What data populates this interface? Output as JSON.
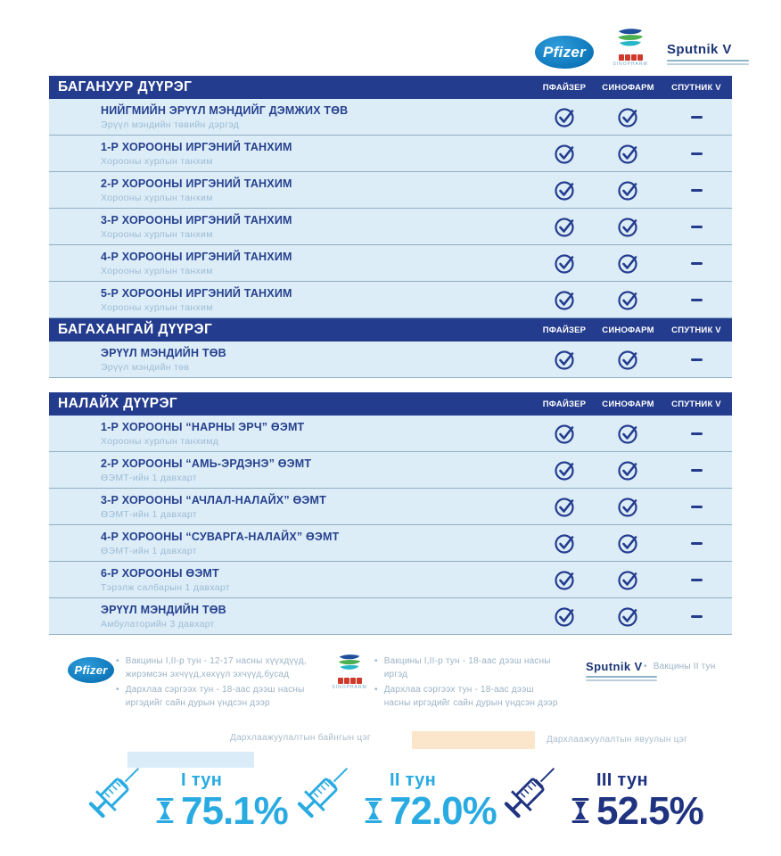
{
  "header": {
    "logos": {
      "pfizer": "Pfizer",
      "sinopharm_cn": "国药集团",
      "sinopharm_en": "SINOPHARM",
      "sputnik": "Sputnik V"
    }
  },
  "columns": [
    "ПФАЙЗЕР",
    "СИНОФАРМ",
    "СПУТНИК V"
  ],
  "sections": [
    {
      "title": "БАГАНУУР ДҮҮРЭГ",
      "rows": [
        {
          "name": "НИЙГМИЙН ЭРҮҮЛ МЭНДИЙГ ДЭМЖИХ ТӨВ",
          "location": "Эрүүл мэндийн төвийн дэргэд",
          "availability": {
            "pfizer": true,
            "sinopharm": true,
            "sputnik_v": false
          }
        },
        {
          "name": "1-Р ХОРООНЫ ИРГЭНИЙ ТАНХИМ",
          "location": "Хорооны хурлын танхим",
          "availability": {
            "pfizer": true,
            "sinopharm": true,
            "sputnik_v": false
          }
        },
        {
          "name": "2-Р ХОРООНЫ ИРГЭНИЙ ТАНХИМ",
          "location": "Хорооны хурлын танхим",
          "availability": {
            "pfizer": true,
            "sinopharm": true,
            "sputnik_v": false
          }
        },
        {
          "name": "3-Р ХОРООНЫ ИРГЭНИЙ ТАНХИМ",
          "location": "Хорооны хурлын танхим",
          "availability": {
            "pfizer": true,
            "sinopharm": true,
            "sputnik_v": false
          }
        },
        {
          "name": "4-Р ХОРООНЫ ИРГЭНИЙ ТАНХИМ",
          "location": "Хорооны хурлын танхим",
          "availability": {
            "pfizer": true,
            "sinopharm": true,
            "sputnik_v": false
          }
        },
        {
          "name": "5-Р ХОРООНЫ ИРГЭНИЙ ТАНХИМ",
          "location": "Хорооны хурлын танхим",
          "availability": {
            "pfizer": true,
            "sinopharm": true,
            "sputnik_v": false
          }
        }
      ]
    },
    {
      "title": "БАГАХАНГАЙ ДҮҮРЭГ",
      "rows": [
        {
          "name": "ЭРҮҮЛ МЭНДИЙН ТӨВ",
          "location": "Эрүүл мэндийн төв",
          "availability": {
            "pfizer": true,
            "sinopharm": true,
            "sputnik_v": false
          }
        }
      ]
    },
    {
      "title": "НАЛАЙХ ДҮҮРЭГ",
      "rows": [
        {
          "name": "1-Р ХОРООНЫ “НАРНЫ ЭРЧ” ӨЭМТ",
          "location": "Хорооны хурлын танхимд",
          "availability": {
            "pfizer": true,
            "sinopharm": true,
            "sputnik_v": false
          }
        },
        {
          "name": "2-Р ХОРООНЫ “АМЬ-ЭРДЭНЭ” ӨЭМТ",
          "location": "ӨЭМТ-ийн 1 давхарт",
          "availability": {
            "pfizer": true,
            "sinopharm": true,
            "sputnik_v": false
          }
        },
        {
          "name": "3-Р ХОРООНЫ “АЧЛАЛ-НАЛАЙХ” ӨЭМТ",
          "location": "ӨЭМТ-ийн 1 давхарт",
          "availability": {
            "pfizer": true,
            "sinopharm": true,
            "sputnik_v": false
          }
        },
        {
          "name": "4-Р ХОРООНЫ “СУВАРГА-НАЛАЙХ” ӨЭМТ",
          "location": "ӨЭМТ-ийн 1 давхарт",
          "availability": {
            "pfizer": true,
            "sinopharm": true,
            "sputnik_v": false
          }
        },
        {
          "name": "6-Р ХОРООНЫ ӨЭМТ",
          "location": "Тэрэлж салбарын 1 давхарт",
          "availability": {
            "pfizer": true,
            "sinopharm": true,
            "sputnik_v": false
          }
        },
        {
          "name": "ЭРҮҮЛ МЭНДИЙН ТӨВ",
          "location": "Амбулаторийн 3 давхарт",
          "availability": {
            "pfizer": true,
            "sinopharm": true,
            "sputnik_v": false
          }
        }
      ]
    }
  ],
  "vaccine_legend": {
    "pfizer": {
      "bullets": [
        "Вакцины I,II-р тун - 12-17 насны хүүхдүүд, жирэмсэн эхчүүд,хөхүүл эхчүүд,бусад",
        "Дархлаа сэргээх тун - 18-аас дээш насны иргэдийг сайн дурын үндсэн дээр"
      ]
    },
    "sinopharm": {
      "bullets": [
        "Вакцины I,II-р тун - 18-аас дээш насны иргэд",
        "Дархлаа сэргээх тун - 18-аас дээш насны иргэдийг сайн дурын үндсэн дээр"
      ]
    },
    "sputnik": {
      "bullets": [
        "Вакцины II тун"
      ]
    }
  },
  "points_legend": {
    "permanent_label": "Дархлаажуулалтын байнгын цэг",
    "mobile_label": "Дархлаажуулалтын явуулын цэг",
    "permanent_color": "#d9ecf8",
    "mobile_color": "#fbe6cc"
  },
  "stats": [
    {
      "label": "I тун",
      "value": "75.1%",
      "color": "#29abe2"
    },
    {
      "label": "II тун",
      "value": "72.0%",
      "color": "#29abe2"
    },
    {
      "label": "III тун",
      "value": "52.5%",
      "color": "#1f3380"
    }
  ],
  "colors": {
    "header_navy": "#243c8e",
    "row_bg": "#dcedf8",
    "accent_blue": "#29abe2"
  }
}
